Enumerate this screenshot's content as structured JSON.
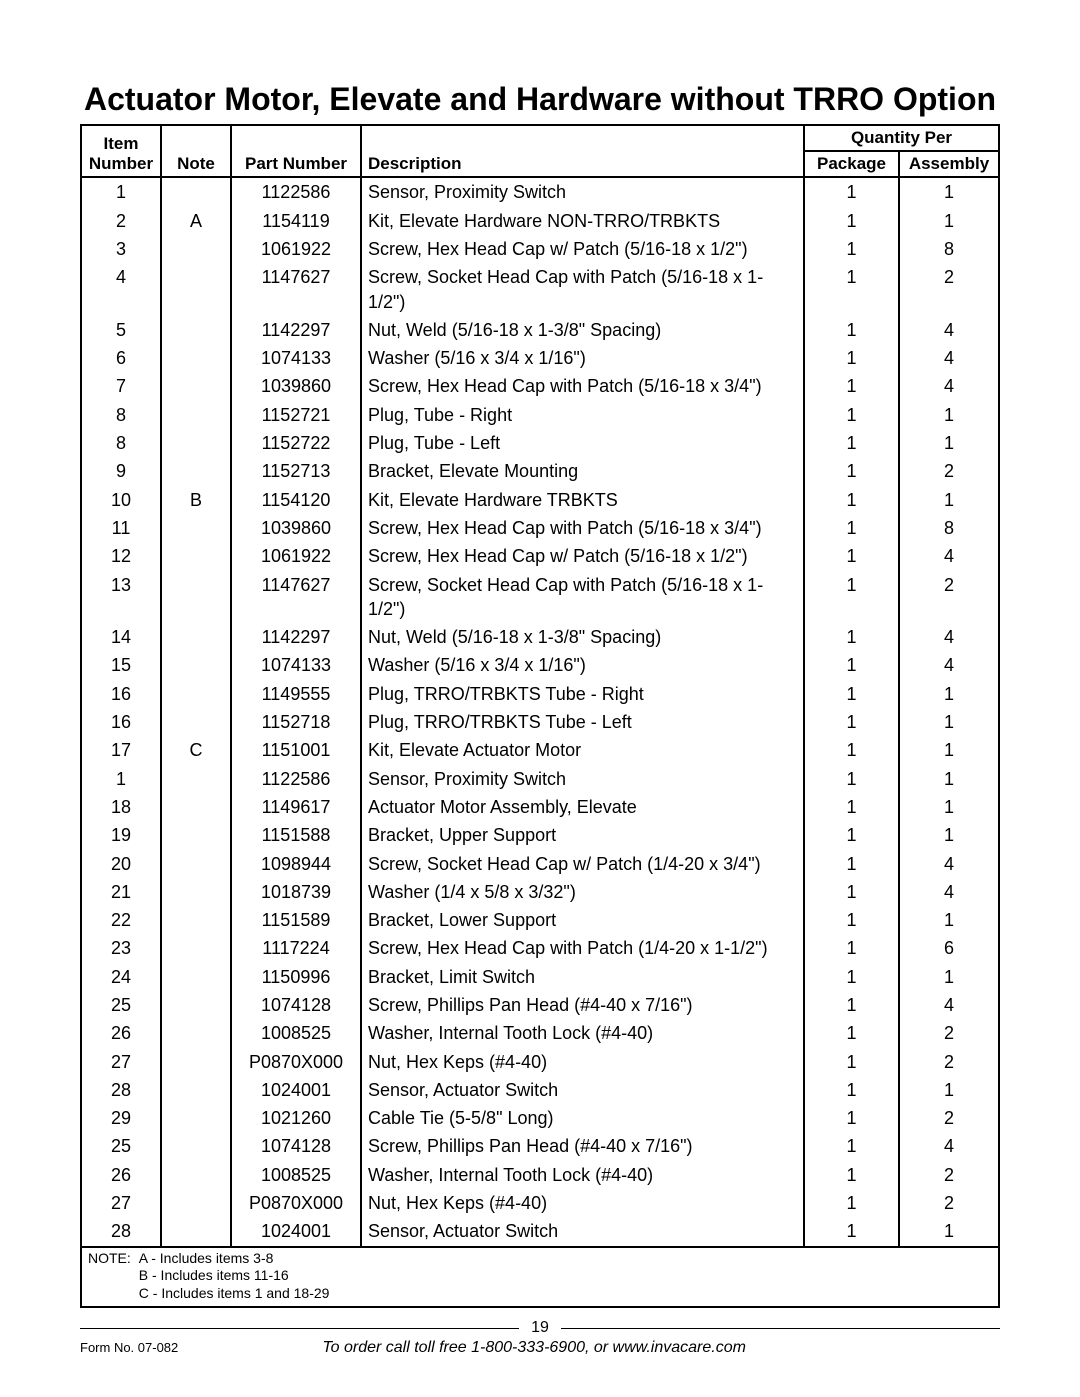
{
  "title": "Actuator Motor, Elevate and Hardware without TRRO Option",
  "headers": {
    "item_number_top": "Item",
    "item_number": "Number",
    "note": "Note",
    "part_number": "Part Number",
    "description": "Description",
    "quantity_per": "Quantity Per",
    "package": "Package",
    "assembly": "Assembly"
  },
  "rows": [
    {
      "item": "1",
      "note": "",
      "part": "1122586",
      "desc": "Sensor, Proximity Switch",
      "pkg": "1",
      "asm": "1"
    },
    {
      "item": "2",
      "note": "A",
      "part": "1154119",
      "desc": "Kit, Elevate Hardware NON-TRRO/TRBKTS",
      "pkg": "1",
      "asm": "1"
    },
    {
      "item": "3",
      "note": "",
      "part": "1061922",
      "desc": "Screw, Hex Head Cap w/ Patch (5/16-18 x 1/2\")",
      "pkg": "1",
      "asm": "8"
    },
    {
      "item": "4",
      "note": "",
      "part": "1147627",
      "desc": "Screw, Socket Head Cap with Patch (5/16-18 x 1-1/2\")",
      "pkg": "1",
      "asm": "2"
    },
    {
      "item": "5",
      "note": "",
      "part": "1142297",
      "desc": "Nut, Weld (5/16-18 x 1-3/8\" Spacing)",
      "pkg": "1",
      "asm": "4"
    },
    {
      "item": "6",
      "note": "",
      "part": "1074133",
      "desc": "Washer (5/16 x 3/4 x 1/16\")",
      "pkg": "1",
      "asm": "4"
    },
    {
      "item": "7",
      "note": "",
      "part": "1039860",
      "desc": "Screw, Hex Head Cap with Patch  (5/16-18 x 3/4\")",
      "pkg": "1",
      "asm": "4"
    },
    {
      "item": "8",
      "note": "",
      "part": "1152721",
      "desc": "Plug, Tube - Right",
      "pkg": "1",
      "asm": "1"
    },
    {
      "item": "8",
      "note": "",
      "part": "1152722",
      "desc": "Plug, Tube - Left",
      "pkg": "1",
      "asm": "1"
    },
    {
      "item": "9",
      "note": "",
      "part": "1152713",
      "desc": "Bracket, Elevate Mounting",
      "pkg": "1",
      "asm": "2"
    },
    {
      "item": "10",
      "note": "B",
      "part": "1154120",
      "desc": "Kit, Elevate Hardware TRBKTS",
      "pkg": "1",
      "asm": "1"
    },
    {
      "item": "11",
      "note": "",
      "part": "1039860",
      "desc": "Screw, Hex Head Cap with Patch  (5/16-18 x 3/4\")",
      "pkg": "1",
      "asm": "8"
    },
    {
      "item": "12",
      "note": "",
      "part": "1061922",
      "desc": "Screw, Hex Head Cap w/ Patch (5/16-18 x 1/2\")",
      "pkg": "1",
      "asm": "4"
    },
    {
      "item": "13",
      "note": "",
      "part": "1147627",
      "desc": "Screw, Socket Head Cap with Patch (5/16-18 x 1-1/2\")",
      "pkg": "1",
      "asm": "2"
    },
    {
      "item": "14",
      "note": "",
      "part": "1142297",
      "desc": "Nut, Weld (5/16-18 x 1-3/8\" Spacing)",
      "pkg": "1",
      "asm": "4"
    },
    {
      "item": "15",
      "note": "",
      "part": "1074133",
      "desc": "Washer (5/16 x 3/4 x 1/16\")",
      "pkg": "1",
      "asm": "4"
    },
    {
      "item": "16",
      "note": "",
      "part": "1149555",
      "desc": "Plug, TRRO/TRBKTS Tube - Right",
      "pkg": "1",
      "asm": "1"
    },
    {
      "item": "16",
      "note": "",
      "part": "1152718",
      "desc": "Plug, TRRO/TRBKTS Tube - Left",
      "pkg": "1",
      "asm": "1"
    },
    {
      "item": "17",
      "note": "C",
      "part": "1151001",
      "desc": "Kit, Elevate Actuator Motor",
      "pkg": "1",
      "asm": "1"
    },
    {
      "item": "1",
      "note": "",
      "part": "1122586",
      "desc": "Sensor, Proximity Switch",
      "pkg": "1",
      "asm": "1"
    },
    {
      "item": "18",
      "note": "",
      "part": "1149617",
      "desc": "Actuator Motor Assembly, Elevate",
      "pkg": "1",
      "asm": "1"
    },
    {
      "item": "19",
      "note": "",
      "part": "1151588",
      "desc": "Bracket, Upper Support",
      "pkg": "1",
      "asm": "1"
    },
    {
      "item": "20",
      "note": "",
      "part": "1098944",
      "desc": "Screw, Socket Head Cap w/ Patch (1/4-20 x 3/4\")",
      "pkg": "1",
      "asm": "4"
    },
    {
      "item": "21",
      "note": "",
      "part": "1018739",
      "desc": "Washer (1/4 x 5/8 x 3/32\")",
      "pkg": "1",
      "asm": "4"
    },
    {
      "item": "22",
      "note": "",
      "part": "1151589",
      "desc": "Bracket, Lower Support",
      "pkg": "1",
      "asm": "1"
    },
    {
      "item": "23",
      "note": "",
      "part": "1117224",
      "desc": "Screw, Hex Head Cap with Patch (1/4-20 x 1-1/2\")",
      "pkg": "1",
      "asm": "6"
    },
    {
      "item": "24",
      "note": "",
      "part": "1150996",
      "desc": "Bracket, Limit Switch",
      "pkg": "1",
      "asm": "1"
    },
    {
      "item": "25",
      "note": "",
      "part": "1074128",
      "desc": "Screw, Phillips Pan Head (#4-40 x 7/16\")",
      "pkg": "1",
      "asm": "4"
    },
    {
      "item": "26",
      "note": "",
      "part": "1008525",
      "desc": "Washer, Internal Tooth Lock (#4-40)",
      "pkg": "1",
      "asm": "2"
    },
    {
      "item": "27",
      "note": "",
      "part": "P0870X000",
      "desc": "Nut, Hex Keps (#4-40)",
      "pkg": "1",
      "asm": "2"
    },
    {
      "item": "28",
      "note": "",
      "part": "1024001",
      "desc": "Sensor, Actuator Switch",
      "pkg": "1",
      "asm": "1"
    },
    {
      "item": "29",
      "note": "",
      "part": "1021260",
      "desc": "Cable Tie (5-5/8\" Long)",
      "pkg": "1",
      "asm": "2"
    },
    {
      "item": "25",
      "note": "",
      "part": "1074128",
      "desc": "Screw, Phillips Pan Head (#4-40 x 7/16\")",
      "pkg": "1",
      "asm": "4"
    },
    {
      "item": "26",
      "note": "",
      "part": "1008525",
      "desc": "Washer, Internal Tooth Lock (#4-40)",
      "pkg": "1",
      "asm": "2"
    },
    {
      "item": "27",
      "note": "",
      "part": "P0870X000",
      "desc": "Nut, Hex Keps (#4-40)",
      "pkg": "1",
      "asm": "2"
    },
    {
      "item": "28",
      "note": "",
      "part": "1024001",
      "desc": "Sensor, Actuator Switch",
      "pkg": "1",
      "asm": "1"
    }
  ],
  "notes": {
    "label": "NOTE:",
    "lines": [
      "A - Includes items 3-8",
      "B - Includes items 11-16",
      "C - Includes items 1 and 18-29"
    ]
  },
  "footer": {
    "page_number": "19",
    "form_no": "Form No. 07-082",
    "order_text": "To order call toll free 1-800-333-6900, or www.invacare.com"
  }
}
